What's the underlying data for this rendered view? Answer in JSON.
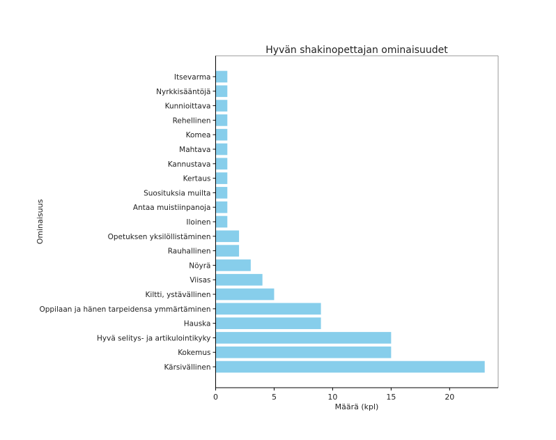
{
  "chart_data": {
    "type": "bar",
    "orientation": "horizontal",
    "title": "Hyvän shakinopettajan ominaisuudet",
    "xlabel": "Määrä (kpl)",
    "ylabel": "Ominaisuus",
    "categories": [
      "Kärsivällinen",
      "Kokemus",
      "Hyvä selitys- ja artikulointikyky",
      "Hauska",
      "Oppilaan ja hänen tarpeidensa ymmärtäminen",
      "Kiltti, ystävällinen",
      "Viisas",
      "Nöyrä",
      "Rauhallinen",
      "Opetuksen yksilöllistäminen",
      "Iloinen",
      "Antaa muistiinpanoja",
      "Suosituksia muilta",
      "Kertaus",
      "Kannustava",
      "Mahtava",
      "Komea",
      "Rehellinen",
      "Kunnioittava",
      "Nyrkkisääntöjä",
      "Itsevarma"
    ],
    "values": [
      23,
      15,
      15,
      9,
      9,
      5,
      4,
      3,
      2,
      2,
      1,
      1,
      1,
      1,
      1,
      1,
      1,
      1,
      1,
      1,
      1
    ],
    "xlim": [
      0,
      24.15
    ],
    "xticks": [
      "0",
      "5",
      "10",
      "15",
      "20"
    ],
    "grid": false,
    "bar_color": "#87ceeb"
  }
}
